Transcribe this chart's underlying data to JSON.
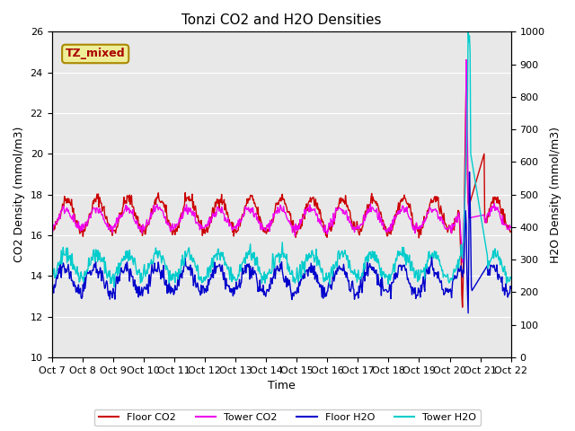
{
  "title": "Tonzi CO2 and H2O Densities",
  "xlabel": "Time",
  "ylabel_left": "CO2 Density (mmol/m3)",
  "ylabel_right": "H2O Density (mmol/m3)",
  "ylim_left": [
    10,
    26
  ],
  "ylim_right": [
    0,
    1000
  ],
  "annotation": "TZ_mixed",
  "annotation_color": "#aa0000",
  "annotation_bg": "#eeee99",
  "x_tick_labels": [
    "Oct 7",
    "Oct 8",
    "Oct 9",
    "Oct 10",
    "Oct 11",
    "Oct 12",
    "Oct 13",
    "Oct 14",
    "Oct 15",
    "Oct 16",
    "Oct 17",
    "Oct 18",
    "Oct 19",
    "Oct 20",
    "Oct 21",
    "Oct 22"
  ],
  "colors": {
    "floor_co2": "#cc0000",
    "tower_co2": "#ee00ee",
    "floor_h2o": "#0000cc",
    "tower_h2o": "#00cccc"
  },
  "legend_labels": [
    "Floor CO2",
    "Tower CO2",
    "Floor H2O",
    "Tower H2O"
  ],
  "background_color": "#e8e8e8",
  "figure_bg": "#ffffff"
}
